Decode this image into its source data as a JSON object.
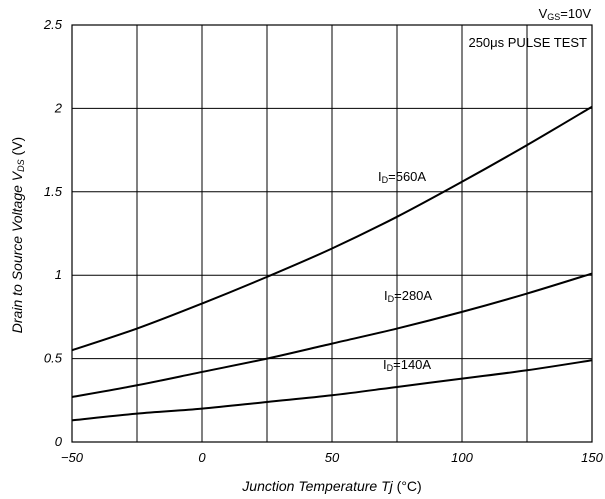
{
  "chart_data": {
    "type": "line",
    "xlabel": "Junction Temperature Tj (°C)",
    "xlabel_main": "Junction Temperature ",
    "xlabel_var": "Tj",
    "xlabel_unit": " (°C)",
    "ylabel_main": "Drain to Source Voltage ",
    "ylabel_var": "V",
    "ylabel_sub": "DS",
    "ylabel_unit": " (V)",
    "xlim": [
      -50,
      150
    ],
    "ylim": [
      0,
      2.5
    ],
    "xticks": [
      -50,
      -25,
      0,
      25,
      50,
      75,
      100,
      125,
      150
    ],
    "xtick_labels": [
      "−50",
      "",
      "0",
      "",
      "50",
      "",
      "100",
      "",
      "150"
    ],
    "yticks": [
      0,
      0.5,
      1,
      1.5,
      2,
      2.5
    ],
    "ytick_labels": [
      "0",
      "0.5",
      "1",
      "1.5",
      "2",
      "2.5"
    ],
    "grid": true,
    "conditions": {
      "vgs_prefix": "V",
      "vgs_sub": "GS",
      "vgs_value": "=10V",
      "pulse": "250μs PULSE TEST"
    },
    "series": [
      {
        "name": "ID=560A",
        "label_prefix": "I",
        "label_sub": "D",
        "label_value": "=560A",
        "x": [
          -50,
          -25,
          0,
          25,
          50,
          75,
          100,
          125,
          150
        ],
        "y": [
          0.55,
          0.68,
          0.83,
          0.99,
          1.16,
          1.35,
          1.56,
          1.78,
          2.01
        ]
      },
      {
        "name": "ID=280A",
        "label_prefix": "I",
        "label_sub": "D",
        "label_value": "=280A",
        "x": [
          -50,
          -25,
          0,
          25,
          50,
          75,
          100,
          125,
          150
        ],
        "y": [
          0.27,
          0.34,
          0.42,
          0.5,
          0.59,
          0.68,
          0.78,
          0.89,
          1.01
        ]
      },
      {
        "name": "ID=140A",
        "label_prefix": "I",
        "label_sub": "D",
        "label_value": "=140A",
        "x": [
          -50,
          -25,
          0,
          25,
          50,
          75,
          100,
          125,
          150
        ],
        "y": [
          0.13,
          0.17,
          0.2,
          0.24,
          0.28,
          0.33,
          0.38,
          0.43,
          0.49
        ]
      }
    ]
  }
}
